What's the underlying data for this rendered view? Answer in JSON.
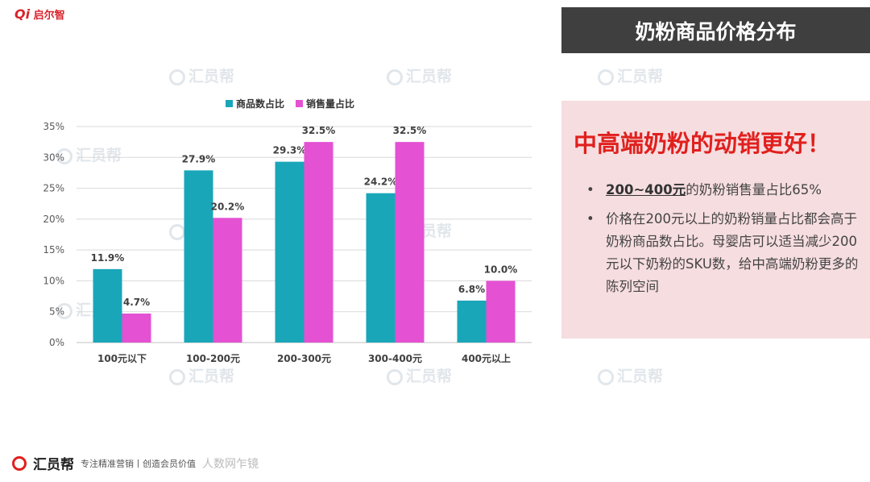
{
  "brand_top": {
    "mark": "Qi",
    "name": "启尔智"
  },
  "title": "奶粉商品价格分布",
  "headline": "中高端奶粉的动销更好！",
  "bullets": [
    {
      "highlight": "200~400元",
      "text": "的奶粉销售量占比65%"
    },
    {
      "highlight": "",
      "text": "价格在200元以上的奶粉销量占比都会高于奶粉商品数占比。母婴店可以适当减少200元以下奶粉的SKU数，给中高端奶粉更多的陈列空间"
    }
  ],
  "watermark": "汇员帮",
  "footer": {
    "brand": "汇员帮",
    "slogan": "专注精准营销丨创造会员价值",
    "overlay": "人数网乍镜"
  },
  "colors": {
    "series1": "#1aa6b9",
    "series2": "#e451d3",
    "title_bg": "#3f3f3f",
    "panel_bg": "#f6dde0",
    "headline": "#e0201d"
  },
  "chart_data": {
    "type": "bar",
    "categories": [
      "100元以下",
      "100-200元",
      "200-300元",
      "300-400元",
      "400元以上"
    ],
    "series": [
      {
        "name": "商品数占比",
        "values": [
          11.9,
          27.9,
          29.3,
          24.2,
          6.8
        ],
        "labels": [
          "11.9%",
          "27.9%",
          "29.3%",
          "24.2%",
          "6.8%"
        ]
      },
      {
        "name": "销售量占比",
        "values": [
          4.7,
          20.2,
          32.5,
          32.5,
          10.0
        ],
        "labels": [
          "4.7%",
          "20.2%",
          "32.5%",
          "32.5%",
          "10.0%"
        ]
      }
    ],
    "yticks": [
      "0%",
      "5%",
      "10%",
      "15%",
      "20%",
      "25%",
      "30%",
      "35%"
    ],
    "ylim": [
      0,
      35
    ],
    "legend_position": "top",
    "grid": true
  }
}
